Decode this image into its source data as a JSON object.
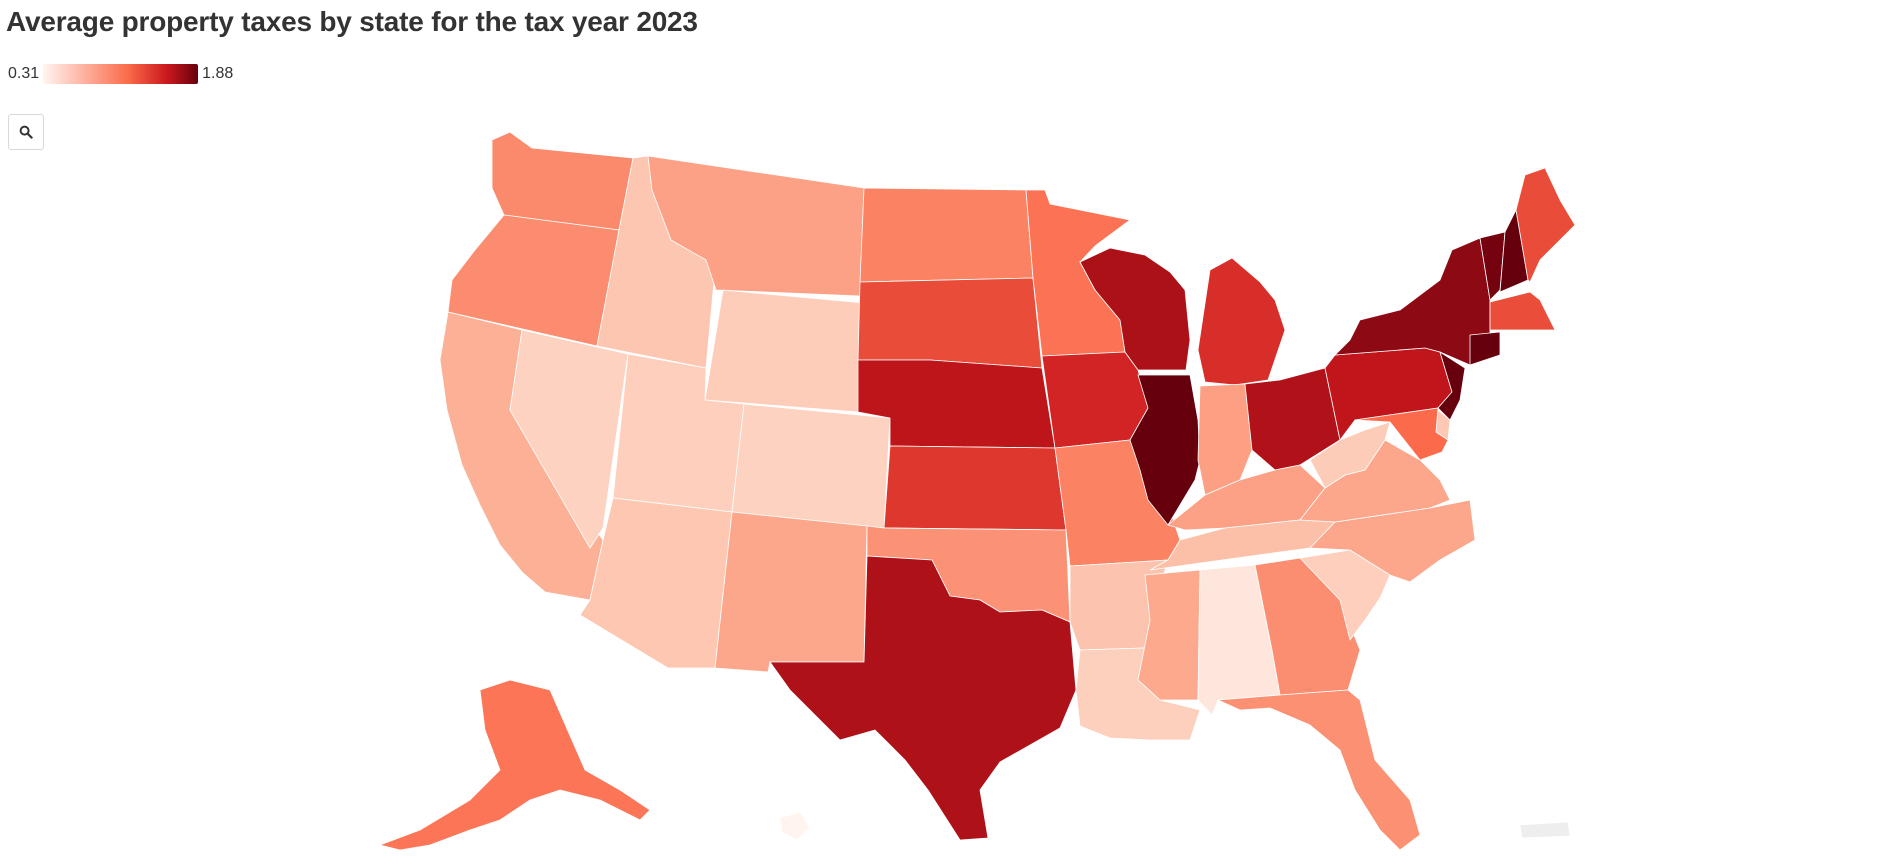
{
  "title": "Average property taxes by state for the tax year 2023",
  "legend": {
    "min_label": "0.31",
    "max_label": "1.88",
    "color_low": "#fff5f0",
    "color_mid": "#fb6a4a",
    "color_high": "#67000d"
  },
  "controls": {
    "search_icon": "magnifier-icon"
  },
  "chart_data": {
    "type": "choropleth",
    "title": "Average property taxes by state for the tax year 2023",
    "color_scale": {
      "min": 0.31,
      "max": 1.88,
      "colors": [
        "#fff5f0",
        "#fcbba1",
        "#fb6a4a",
        "#cb181d",
        "#67000d"
      ]
    },
    "values": {
      "WA": 0.94,
      "OR": 0.93,
      "CA": 0.75,
      "NV": 0.55,
      "ID": 0.63,
      "MT": 0.83,
      "WY": 0.58,
      "UT": 0.57,
      "CO": 0.55,
      "AZ": 0.62,
      "NM": 0.8,
      "ND": 0.98,
      "SD": 1.24,
      "NE": 1.54,
      "KS": 1.34,
      "OK": 0.9,
      "TX": 1.6,
      "MN": 1.05,
      "IA": 1.43,
      "MO": 0.98,
      "AR": 0.64,
      "LA": 0.56,
      "WI": 1.61,
      "IL": 2.08,
      "MI": 1.38,
      "IN": 0.84,
      "OH": 1.59,
      "KY": 0.83,
      "TN": 0.67,
      "MS": 0.79,
      "AL": 0.41,
      "GA": 0.92,
      "FL": 0.91,
      "SC": 0.57,
      "NC": 0.8,
      "VA": 0.8,
      "WV": 0.59,
      "PA": 1.53,
      "NY": 1.73,
      "VT": 1.83,
      "NH": 1.93,
      "ME": 1.24,
      "MA": 1.23,
      "CT": 2.15,
      "NJ": 2.47,
      "MD": 1.09,
      "DE": 0.61,
      "AK": 1.04,
      "HI": 0.32,
      "PR": null
    }
  }
}
